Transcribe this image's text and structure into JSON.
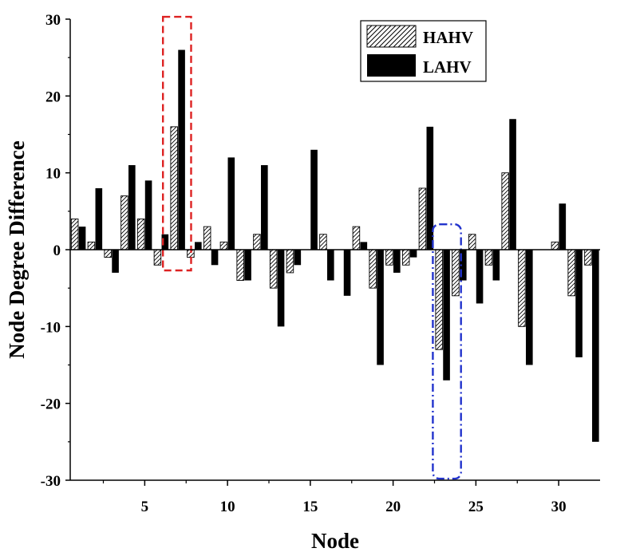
{
  "chart_data": {
    "type": "bar",
    "xlabel": "Node",
    "ylabel": "Node Degree Difference",
    "ylim": [
      -30,
      30
    ],
    "xlim": [
      0.5,
      32.5
    ],
    "x_ticks": [
      5,
      10,
      15,
      20,
      25,
      30
    ],
    "y_ticks": [
      -30,
      -20,
      -10,
      0,
      10,
      20,
      30
    ],
    "grid": false,
    "legend_position": "top-right",
    "categories": [
      1,
      2,
      3,
      4,
      5,
      6,
      7,
      8,
      9,
      10,
      11,
      12,
      13,
      14,
      15,
      16,
      17,
      18,
      19,
      20,
      21,
      22,
      23,
      24,
      25,
      26,
      27,
      28,
      29,
      30,
      31,
      32
    ],
    "series": [
      {
        "name": "HAHV",
        "pattern": "hatched",
        "color": "#000000",
        "values": [
          4,
          1,
          -1,
          7,
          4,
          -2,
          16,
          -1,
          3,
          1,
          -4,
          2,
          -5,
          -3,
          0,
          2,
          0,
          3,
          -5,
          -2,
          -2,
          8,
          -13,
          -6,
          2,
          -2,
          10,
          -10,
          0,
          1,
          -6,
          -2
        ]
      },
      {
        "name": "LAHV",
        "pattern": "solid",
        "color": "#000000",
        "values": [
          3,
          8,
          -3,
          11,
          9,
          2,
          26,
          1,
          -2,
          12,
          -4,
          11,
          -10,
          -2,
          13,
          -4,
          -6,
          1,
          -15,
          -3,
          -1,
          16,
          -17,
          -4,
          -7,
          -4,
          17,
          -15,
          0,
          6,
          -14,
          -25
        ]
      }
    ],
    "annotations": [
      {
        "shape": "dashed-rectangle",
        "color": "#dd2222",
        "x_range": [
          6.1,
          7.8
        ],
        "y_range": [
          -2.7,
          30.3
        ]
      },
      {
        "shape": "dash-dot-rounded-rectangle",
        "color": "#2233cc",
        "x_range": [
          22.4,
          24.1
        ],
        "y_range": [
          -29.8,
          3.3
        ]
      }
    ]
  }
}
